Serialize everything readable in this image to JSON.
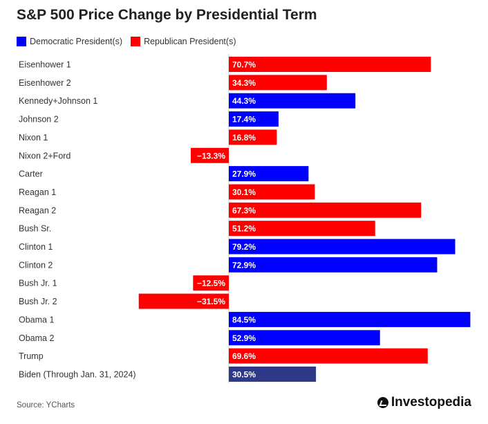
{
  "chart_data": {
    "type": "bar",
    "orientation": "horizontal",
    "title": "S&P 500 Price Change by Presidential Term",
    "legend": [
      {
        "label": "Democratic President(s)",
        "color": "#0000ff"
      },
      {
        "label": "Republican President(s)",
        "color": "#ff0000"
      }
    ],
    "legend_position": "top-left",
    "categories": [
      "Eisenhower 1",
      "Eisenhower 2",
      "Kennedy+Johnson 1",
      "Johnson 2",
      "Nixon 1",
      "Nixon 2+Ford",
      "Carter",
      "Reagan 1",
      "Reagan 2",
      "Bush Sr.",
      "Clinton 1",
      "Clinton 2",
      "Bush Jr. 1",
      "Bush Jr. 2",
      "Obama 1",
      "Obama 2",
      "Trump",
      "Biden (Through Jan. 31, 2024)"
    ],
    "values": [
      70.7,
      34.3,
      44.3,
      17.4,
      16.8,
      -13.3,
      27.9,
      30.1,
      67.3,
      51.2,
      79.2,
      72.9,
      -12.5,
      -31.5,
      84.5,
      52.9,
      69.6,
      30.5
    ],
    "value_labels": [
      "70.7%",
      "34.3%",
      "44.3%",
      "17.4%",
      "16.8%",
      "−13.3%",
      "27.9%",
      "30.1%",
      "67.3%",
      "51.2%",
      "79.2%",
      "72.9%",
      "−12.5%",
      "−31.5%",
      "84.5%",
      "52.9%",
      "69.6%",
      "30.5%"
    ],
    "party": [
      "R",
      "R",
      "D",
      "D",
      "R",
      "R",
      "D",
      "R",
      "R",
      "R",
      "D",
      "D",
      "R",
      "R",
      "D",
      "D",
      "R",
      "D*"
    ],
    "colors": {
      "D": "#0000ff",
      "R": "#ff0000",
      "D*": "#2e3a87"
    },
    "xlim": [
      -31.5,
      84.5
    ],
    "grid": false
  },
  "source": "Source: YCharts",
  "brand": "Investopedia"
}
